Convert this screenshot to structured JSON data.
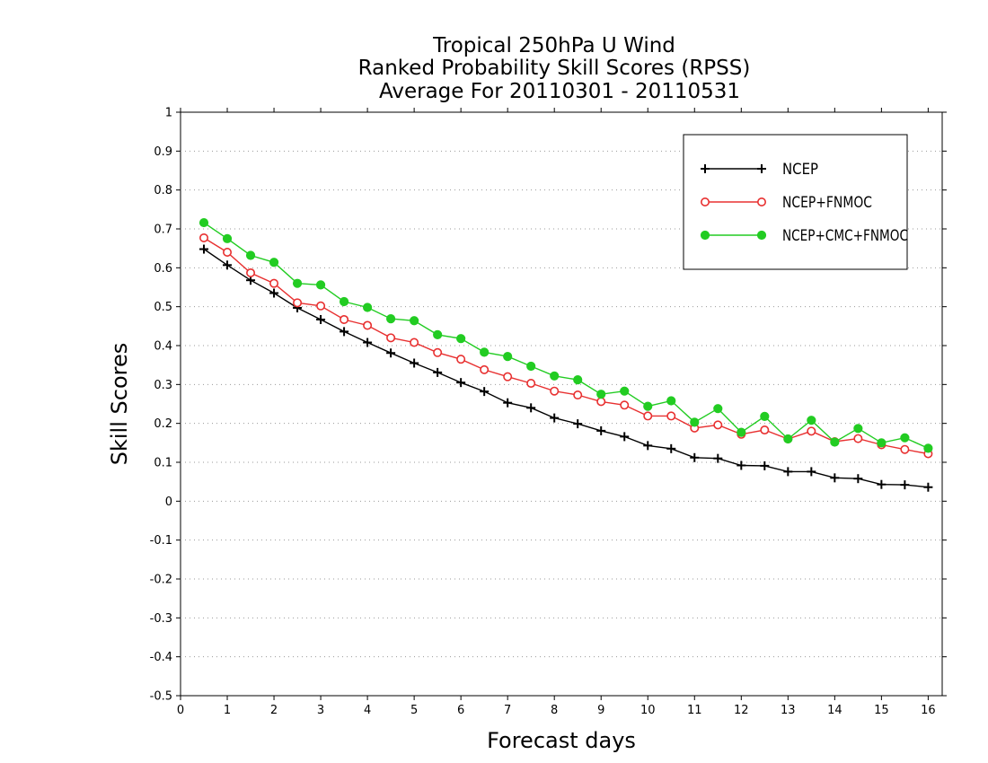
{
  "chart_data": {
    "type": "line",
    "title_lines": [
      "Tropical 250hPa U Wind",
      "Ranked Probability Skill Scores (RPSS)",
      "Average For 20110301 - 20110531"
    ],
    "xlabel": "Forecast days",
    "ylabel": "Skill Scores",
    "xlim": [
      0,
      16.3
    ],
    "ylim": [
      -0.5,
      1
    ],
    "x_ticks": [
      0,
      1,
      2,
      3,
      4,
      5,
      6,
      7,
      8,
      9,
      10,
      11,
      12,
      13,
      14,
      15,
      16
    ],
    "y_ticks": [
      -0.5,
      -0.4,
      -0.3,
      -0.2,
      -0.1,
      0,
      0.1,
      0.2,
      0.3,
      0.4,
      0.5,
      0.6,
      0.7,
      0.8,
      0.9,
      1
    ],
    "y_tick_labels": [
      "-0.5",
      "-0.4",
      "-0.3",
      "-0.2",
      "-0.1",
      "0",
      "0.1",
      "0.2",
      "0.3",
      "0.4",
      "0.5",
      "0.6",
      "0.7",
      "0.8",
      "0.9",
      "1"
    ],
    "grid": "horizontal dotted",
    "legend_position": "top-right",
    "x": [
      0.5,
      1,
      1.5,
      2,
      2.5,
      3,
      3.5,
      4,
      4.5,
      5,
      5.5,
      6,
      6.5,
      7,
      7.5,
      8,
      8.5,
      9,
      9.5,
      10,
      10.5,
      11,
      11.5,
      12,
      12.5,
      13,
      13.5,
      14,
      14.5,
      15,
      15.5,
      16
    ],
    "series": [
      {
        "name": "NCEP",
        "color": "#000000",
        "marker": "plus",
        "values": [
          0.648,
          0.607,
          0.568,
          0.535,
          0.497,
          0.467,
          0.436,
          0.408,
          0.381,
          0.355,
          0.331,
          0.305,
          0.282,
          0.253,
          0.24,
          0.214,
          0.199,
          0.181,
          0.166,
          0.143,
          0.135,
          0.112,
          0.11,
          0.092,
          0.091,
          0.076,
          0.076,
          0.06,
          0.058,
          0.043,
          0.042,
          0.036
        ]
      },
      {
        "name": "NCEP+FNMOC",
        "color": "#e83030",
        "marker": "open-circle",
        "values": [
          0.677,
          0.64,
          0.587,
          0.56,
          0.51,
          0.502,
          0.467,
          0.452,
          0.42,
          0.408,
          0.382,
          0.365,
          0.338,
          0.32,
          0.303,
          0.283,
          0.273,
          0.256,
          0.247,
          0.219,
          0.219,
          0.188,
          0.196,
          0.172,
          0.183,
          0.16,
          0.18,
          0.153,
          0.161,
          0.145,
          0.133,
          0.122
        ]
      },
      {
        "name": "NCEP+CMC+FNMOC",
        "color": "#22cc22",
        "marker": "filled-circle",
        "values": [
          0.716,
          0.675,
          0.632,
          0.614,
          0.56,
          0.556,
          0.513,
          0.498,
          0.469,
          0.464,
          0.428,
          0.418,
          0.383,
          0.372,
          0.347,
          0.322,
          0.312,
          0.275,
          0.283,
          0.244,
          0.258,
          0.203,
          0.238,
          0.177,
          0.218,
          0.16,
          0.208,
          0.152,
          0.187,
          0.15,
          0.163,
          0.136
        ]
      }
    ]
  }
}
